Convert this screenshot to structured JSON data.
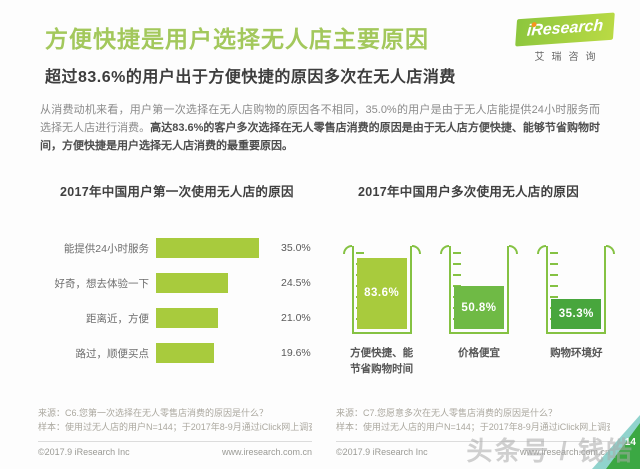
{
  "header": {
    "title": "方便快捷是用户选择无人店主要原因",
    "subtitle": "超过83.6%的用户出于方便快捷的原因多次在无人店消费",
    "logo": {
      "brand": "iResearch",
      "brand_cn": "艾瑞咨询"
    }
  },
  "intro": {
    "text_regular": "从消费动机来看，用户第一次选择在无人店购物的原因各不相同，35.0%的用户是由于无人店能提供24小时服务而选择无人店进行消费。",
    "text_bold": "高达83.6%的客户多次选择在无人零售店消费的原因是由于无人店方便快捷、能够节省购物时间，方便快捷是用户选择无人店消费的最重要原因。"
  },
  "chart_data": [
    {
      "type": "bar",
      "orientation": "horizontal",
      "title": "2017年中国用户第一次使用无人店的原因",
      "categories": [
        "能提供24小时服务",
        "好奇，想去体验一下",
        "距离近，方便",
        "路过，顺便买点"
      ],
      "values": [
        35.0,
        24.5,
        21.0,
        19.6
      ],
      "unit": "%",
      "xlim": [
        0,
        40
      ],
      "grid": false,
      "bar_color": "#a8cb3d"
    },
    {
      "type": "bar",
      "variant": "beaker-fill",
      "title": "2017年中国用户多次使用无人店的原因",
      "categories": [
        "方便快捷、能节省购物时间",
        "价格便宜",
        "购物环境好"
      ],
      "values": [
        83.6,
        50.8,
        35.3
      ],
      "unit": "%",
      "ylim": [
        0,
        100
      ],
      "grid": false,
      "colors": [
        "#a8cb3d",
        "#6fba45",
        "#48a63d"
      ],
      "outline_color": "#85c243"
    }
  ],
  "footnotes": {
    "left": {
      "source": "来源：C6.您第一次选择在无人零售店消费的原因是什么？",
      "sample": "样本：使用过无人店的用户N=144；于2017年8-9月通过iClick网上调查获得。"
    },
    "right": {
      "source": "来源：C7.您愿意多次在无人零售店消费的原因是什么？",
      "sample": "样本：使用过无人店的用户N=144；于2017年8-9月通过iClick网上调查获得。"
    }
  },
  "footer": {
    "copyright": "©2017.9 iResearch Inc",
    "website": "www.iresearch.com.cn",
    "page_number": "14"
  },
  "watermark": "头条号 / 钱皓"
}
